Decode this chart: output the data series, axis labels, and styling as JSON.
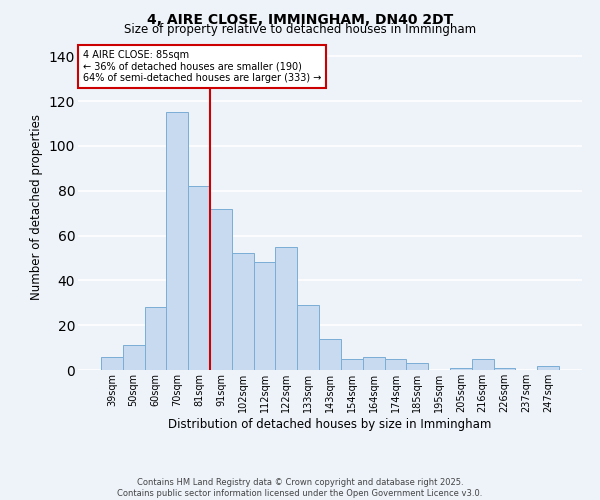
{
  "title": "4, AIRE CLOSE, IMMINGHAM, DN40 2DT",
  "subtitle": "Size of property relative to detached houses in Immingham",
  "xlabel": "Distribution of detached houses by size in Immingham",
  "ylabel": "Number of detached properties",
  "bar_labels": [
    "39sqm",
    "50sqm",
    "60sqm",
    "70sqm",
    "81sqm",
    "91sqm",
    "102sqm",
    "112sqm",
    "122sqm",
    "133sqm",
    "143sqm",
    "154sqm",
    "164sqm",
    "174sqm",
    "185sqm",
    "195sqm",
    "205sqm",
    "216sqm",
    "226sqm",
    "237sqm",
    "247sqm"
  ],
  "bar_values": [
    6,
    11,
    28,
    115,
    82,
    72,
    52,
    48,
    55,
    29,
    14,
    5,
    6,
    5,
    3,
    0,
    1,
    5,
    1,
    0,
    2
  ],
  "bar_color": "#c8daf0",
  "bar_edge_color": "#7aadd6",
  "vline_color": "#cc0000",
  "vline_x_idx": 4,
  "annotation_title": "4 AIRE CLOSE: 85sqm",
  "annotation_line1": "← 36% of detached houses are smaller (190)",
  "annotation_line2": "64% of semi-detached houses are larger (333) →",
  "annotation_box_facecolor": "#ffffff",
  "annotation_box_edgecolor": "#cc0000",
  "ylim": [
    0,
    145
  ],
  "yticks": [
    0,
    20,
    40,
    60,
    80,
    100,
    120,
    140
  ],
  "footer1": "Contains HM Land Registry data © Crown copyright and database right 2025.",
  "footer2": "Contains public sector information licensed under the Open Government Licence v3.0.",
  "bg_color": "#eef3fa"
}
